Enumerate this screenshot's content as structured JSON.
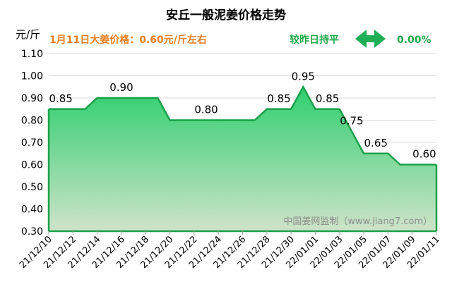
{
  "header": {
    "title": "安丘一般泥姜价格走势",
    "unit": "元/斤",
    "price_text": "1月11日大姜价格：0.60元/斤左右",
    "compare_text": "较昨日持平",
    "change_text": "0.00%",
    "arrow_icon": "double-arrow-icon"
  },
  "watermark": "中国姜网监制（www.jiang7.com）",
  "colors": {
    "line": "#1aa04a",
    "fill_top": "#2fcf6f",
    "fill_bottom": "#cfe3c9",
    "info": "#e87e22",
    "grid": "#d9d9d9"
  },
  "chart_data": {
    "type": "area",
    "title": "安丘一般泥姜价格走势",
    "ylabel": "元/斤",
    "xlabel": "",
    "ylim": [
      0.3,
      1.1
    ],
    "yticks": [
      "0.30",
      "0.40",
      "0.50",
      "0.60",
      "0.70",
      "0.80",
      "0.90",
      "1.00",
      "1.10"
    ],
    "x_tick_labels": [
      "21/12/10",
      "21/12/12",
      "21/12/14",
      "21/12/16",
      "21/12/18",
      "21/12/20",
      "21/12/22",
      "21/12/24",
      "21/12/26",
      "21/12/28",
      "21/12/30",
      "22/01/01",
      "22/01/03",
      "22/01/05",
      "22/01/07",
      "22/01/09",
      "22/01/11"
    ],
    "grid": true,
    "legend": "none",
    "series": [
      {
        "x": [
          "21/12/10",
          "21/12/11",
          "21/12/12",
          "21/12/13",
          "21/12/14",
          "21/12/15",
          "21/12/16",
          "21/12/17",
          "21/12/18",
          "21/12/19",
          "21/12/20",
          "21/12/21",
          "21/12/22",
          "21/12/23",
          "21/12/24",
          "21/12/25",
          "21/12/26",
          "21/12/27",
          "21/12/28",
          "21/12/29",
          "21/12/30",
          "21/12/31",
          "22/01/01",
          "22/01/02",
          "22/01/03",
          "22/01/04",
          "22/01/05",
          "22/01/06",
          "22/01/07",
          "22/01/08",
          "22/01/09",
          "22/01/10",
          "22/01/11"
        ],
        "values": [
          0.85,
          0.85,
          0.85,
          0.85,
          0.9,
          0.9,
          0.9,
          0.9,
          0.9,
          0.9,
          0.8,
          0.8,
          0.8,
          0.8,
          0.8,
          0.8,
          0.8,
          0.8,
          0.85,
          0.85,
          0.85,
          0.95,
          0.85,
          0.85,
          0.85,
          0.75,
          0.65,
          0.65,
          0.65,
          0.6,
          0.6,
          0.6,
          0.6
        ]
      }
    ],
    "data_labels": [
      {
        "x": "21/12/11",
        "text": "0.85"
      },
      {
        "x": "21/12/16",
        "text": "0.90"
      },
      {
        "x": "21/12/23",
        "text": "0.80"
      },
      {
        "x": "21/12/29",
        "text": "0.85"
      },
      {
        "x": "21/12/31",
        "text": "0.95"
      },
      {
        "x": "22/01/02",
        "text": "0.85"
      },
      {
        "x": "22/01/04",
        "text": "0.75"
      },
      {
        "x": "22/01/06",
        "text": "0.65"
      },
      {
        "x": "22/01/10",
        "text": "0.60"
      }
    ]
  }
}
